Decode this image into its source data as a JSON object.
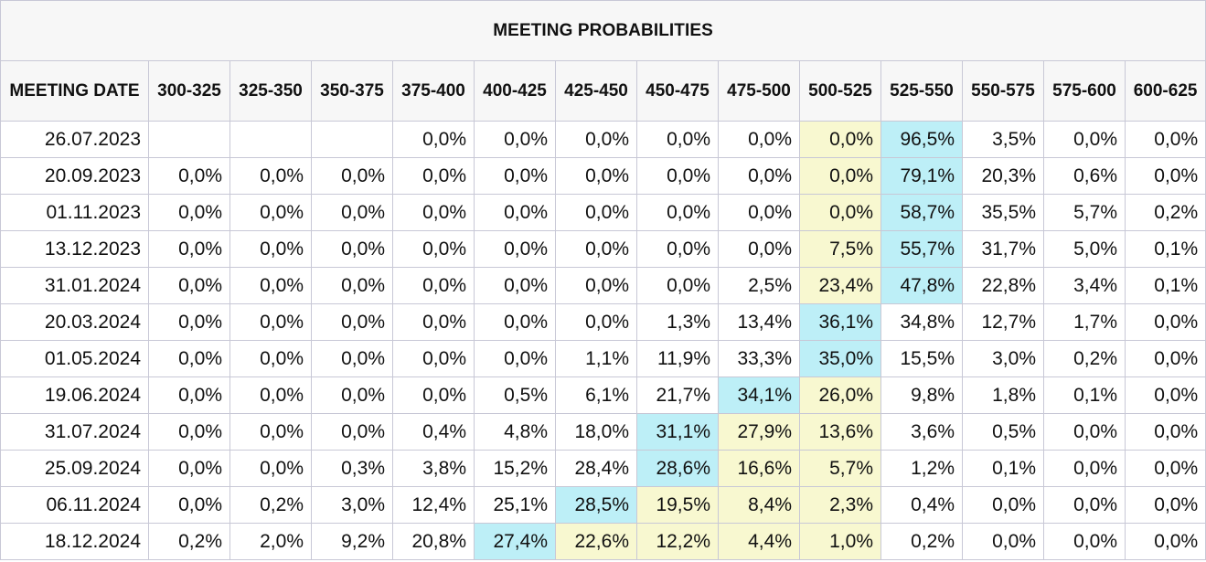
{
  "table": {
    "title": "MEETING PROBABILITIES",
    "date_header": "MEETING DATE",
    "columns": [
      "300-325",
      "325-350",
      "350-375",
      "375-400",
      "400-425",
      "425-450",
      "450-475",
      "475-500",
      "500-525",
      "525-550",
      "550-575",
      "575-600",
      "600-625"
    ],
    "highlight_colors": {
      "cyan": "#bdeff7",
      "yellow": "#f8f8d0"
    },
    "rows": [
      {
        "date": "26.07.2023",
        "values": [
          "",
          "",
          "",
          "0,0%",
          "0,0%",
          "0,0%",
          "0,0%",
          "0,0%",
          "0,0%",
          "96,5%",
          "3,5%",
          "0,0%",
          "0,0%"
        ],
        "cyan": 9,
        "yellow": 8
      },
      {
        "date": "20.09.2023",
        "values": [
          "0,0%",
          "0,0%",
          "0,0%",
          "0,0%",
          "0,0%",
          "0,0%",
          "0,0%",
          "0,0%",
          "0,0%",
          "79,1%",
          "20,3%",
          "0,6%",
          "0,0%"
        ],
        "cyan": 9,
        "yellow": 8
      },
      {
        "date": "01.11.2023",
        "values": [
          "0,0%",
          "0,0%",
          "0,0%",
          "0,0%",
          "0,0%",
          "0,0%",
          "0,0%",
          "0,0%",
          "0,0%",
          "58,7%",
          "35,5%",
          "5,7%",
          "0,2%"
        ],
        "cyan": 9,
        "yellow": 8
      },
      {
        "date": "13.12.2023",
        "values": [
          "0,0%",
          "0,0%",
          "0,0%",
          "0,0%",
          "0,0%",
          "0,0%",
          "0,0%",
          "0,0%",
          "7,5%",
          "55,7%",
          "31,7%",
          "5,0%",
          "0,1%"
        ],
        "cyan": 9,
        "yellow": 8
      },
      {
        "date": "31.01.2024",
        "values": [
          "0,0%",
          "0,0%",
          "0,0%",
          "0,0%",
          "0,0%",
          "0,0%",
          "0,0%",
          "2,5%",
          "23,4%",
          "47,8%",
          "22,8%",
          "3,4%",
          "0,1%"
        ],
        "cyan": 9,
        "yellow": 8
      },
      {
        "date": "20.03.2024",
        "values": [
          "0,0%",
          "0,0%",
          "0,0%",
          "0,0%",
          "0,0%",
          "0,0%",
          "1,3%",
          "13,4%",
          "36,1%",
          "34,8%",
          "12,7%",
          "1,7%",
          "0,0%"
        ],
        "cyan": 8,
        "yellow": -1
      },
      {
        "date": "01.05.2024",
        "values": [
          "0,0%",
          "0,0%",
          "0,0%",
          "0,0%",
          "0,0%",
          "1,1%",
          "11,9%",
          "33,3%",
          "35,0%",
          "15,5%",
          "3,0%",
          "0,2%",
          "0,0%"
        ],
        "cyan": 8,
        "yellow": -1
      },
      {
        "date": "19.06.2024",
        "values": [
          "0,0%",
          "0,0%",
          "0,0%",
          "0,0%",
          "0,5%",
          "6,1%",
          "21,7%",
          "34,1%",
          "26,0%",
          "9,8%",
          "1,8%",
          "0,1%",
          "0,0%"
        ],
        "cyan": 7,
        "yellow": 8
      },
      {
        "date": "31.07.2024",
        "values": [
          "0,0%",
          "0,0%",
          "0,0%",
          "0,4%",
          "4,8%",
          "18,0%",
          "31,1%",
          "27,9%",
          "13,6%",
          "3,6%",
          "0,5%",
          "0,0%",
          "0,0%"
        ],
        "cyan": 6,
        "yellow": [
          7,
          8
        ]
      },
      {
        "date": "25.09.2024",
        "values": [
          "0,0%",
          "0,0%",
          "0,3%",
          "3,8%",
          "15,2%",
          "28,4%",
          "28,6%",
          "16,6%",
          "5,7%",
          "1,2%",
          "0,1%",
          "0,0%",
          "0,0%"
        ],
        "cyan": 6,
        "yellow": [
          7,
          8
        ]
      },
      {
        "date": "06.11.2024",
        "values": [
          "0,0%",
          "0,2%",
          "3,0%",
          "12,4%",
          "25,1%",
          "28,5%",
          "19,5%",
          "8,4%",
          "2,3%",
          "0,4%",
          "0,0%",
          "0,0%",
          "0,0%"
        ],
        "cyan": 5,
        "yellow": [
          6,
          7,
          8
        ]
      },
      {
        "date": "18.12.2024",
        "values": [
          "0,2%",
          "2,0%",
          "9,2%",
          "20,8%",
          "27,4%",
          "22,6%",
          "12,2%",
          "4,4%",
          "1,0%",
          "0,2%",
          "0,0%",
          "0,0%",
          "0,0%"
        ],
        "cyan": 4,
        "yellow": [
          5,
          6,
          7,
          8
        ]
      }
    ]
  }
}
